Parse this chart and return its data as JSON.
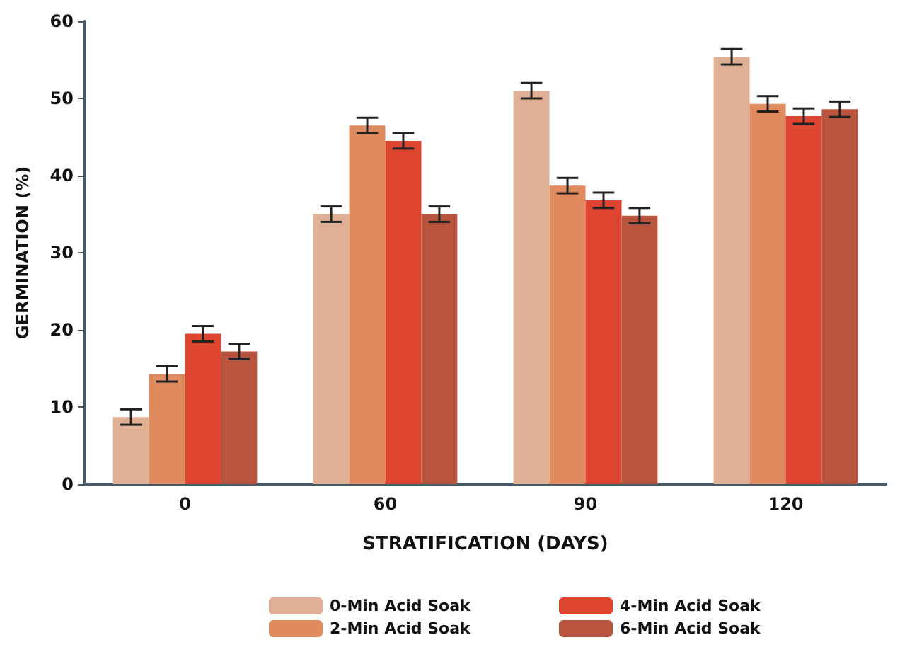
{
  "chart_data": {
    "type": "bar",
    "xlabel": "STRATIFICATION (DAYS)",
    "ylabel": "GERMINATION (%)",
    "categories": [
      "0",
      "60",
      "90",
      "120"
    ],
    "series": [
      {
        "name": "0-Min Acid Soak",
        "color": "#dfb093",
        "values": [
          8.7,
          35.0,
          51.0,
          55.4
        ],
        "errors": [
          1,
          1,
          1,
          1
        ]
      },
      {
        "name": "2-Min Acid Soak",
        "color": "#e08a60",
        "values": [
          14.3,
          46.5,
          38.7,
          49.3
        ],
        "errors": [
          1,
          1,
          1,
          1
        ]
      },
      {
        "name": "4-Min Acid Soak",
        "color": "#de4530",
        "values": [
          19.5,
          44.5,
          36.8,
          47.7
        ],
        "errors": [
          1,
          1,
          1,
          1
        ]
      },
      {
        "name": "6-Min Acid Soak",
        "color": "#b9553f",
        "values": [
          17.2,
          35.0,
          34.8,
          48.6
        ],
        "errors": [
          1,
          1,
          1,
          1
        ]
      }
    ],
    "ylim": [
      0,
      60
    ],
    "yticks": [
      0,
      10,
      20,
      30,
      40,
      50,
      60
    ],
    "grid": false,
    "legend": "bottom"
  }
}
